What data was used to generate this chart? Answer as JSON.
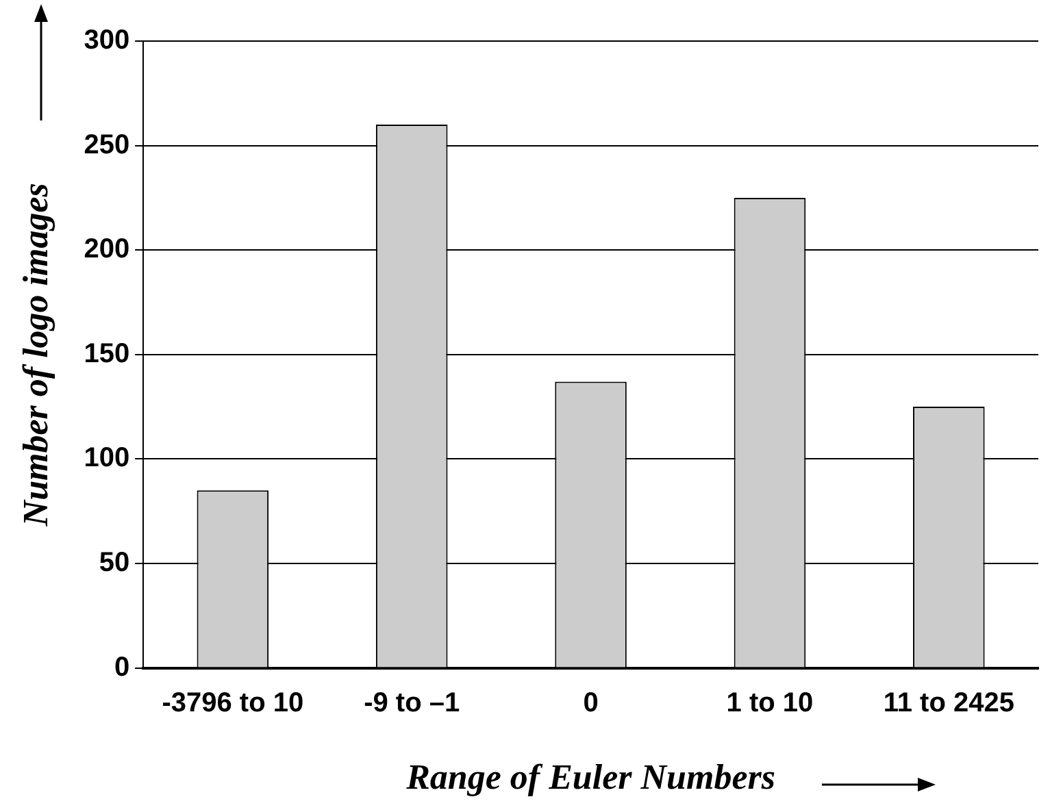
{
  "chart_data": {
    "type": "bar",
    "categories": [
      "-3796 to 10",
      "-9 to –1",
      "0",
      "1 to 10",
      "11 to 2425"
    ],
    "values": [
      85,
      260,
      137,
      225,
      125
    ],
    "color": "#cccccc",
    "xlabel": "Range of Euler Numbers",
    "ylabel": "Number of logo images",
    "ylim": [
      0,
      300
    ],
    "yticks": [
      0,
      50,
      100,
      150,
      200,
      250,
      300
    ],
    "grid": "y",
    "legend": false
  }
}
